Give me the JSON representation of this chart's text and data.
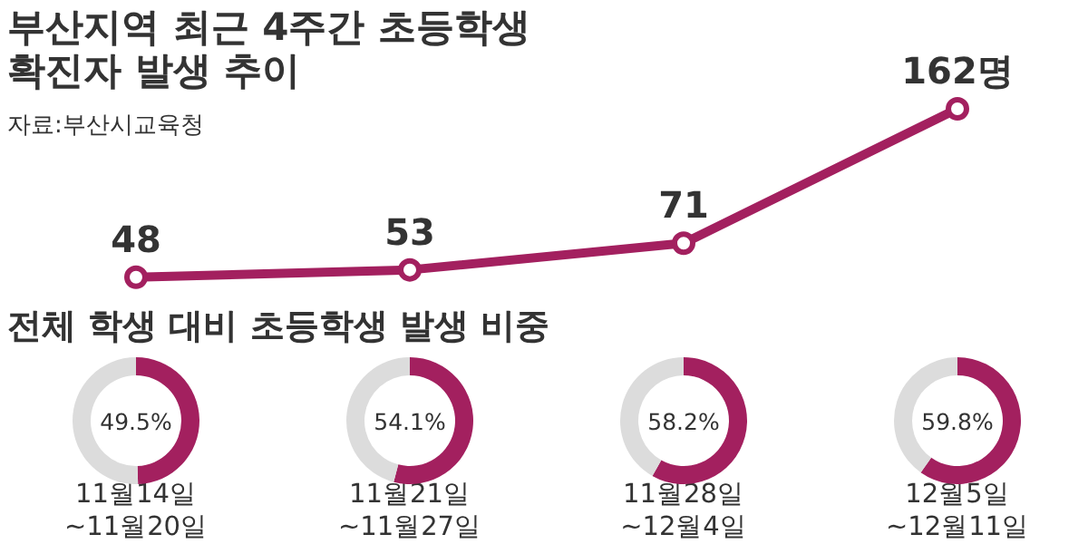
{
  "chart_data": [
    {
      "type": "line",
      "title": "부산지역 최근 4주간 초등학생\n확진자 발생 추이",
      "subtitle": "자료:부산시교육청",
      "categories": [
        "11월14일\n~11월20일",
        "11월21일\n~11월27일",
        "11월28일\n~12월4일",
        "12월5일\n~12월11일"
      ],
      "values": [
        48,
        53,
        71,
        162
      ],
      "value_labels": [
        "48",
        "53",
        "71",
        "162명"
      ],
      "color": "#a3205f",
      "marker": "circle"
    },
    {
      "type": "donut",
      "title": "전체 학생 대비 초등학생 발생 비중",
      "categories": [
        null,
        null
      ],
      "values": [
        49.5,
        50.5
      ],
      "colors": [
        "#a3205f",
        "#dcdcdc"
      ],
      "value_labels": [
        "49.5%",
        null
      ]
    },
    {
      "type": "donut",
      "categories": [
        null,
        null
      ],
      "values": [
        54.1,
        45.9
      ],
      "colors": [
        "#a3205f",
        "#dcdcdc"
      ],
      "value_labels": [
        "54.1%",
        null
      ]
    },
    {
      "type": "donut",
      "categories": [
        null,
        null
      ],
      "values": [
        58.2,
        41.8
      ],
      "colors": [
        "#a3205f",
        "#dcdcdc"
      ],
      "value_labels": [
        "58.2%",
        null
      ]
    },
    {
      "type": "donut",
      "categories": [
        null,
        null
      ],
      "values": [
        59.8,
        40.2
      ],
      "colors": [
        "#a3205f",
        "#dcdcdc"
      ],
      "value_labels": [
        "59.8%",
        null
      ]
    }
  ]
}
